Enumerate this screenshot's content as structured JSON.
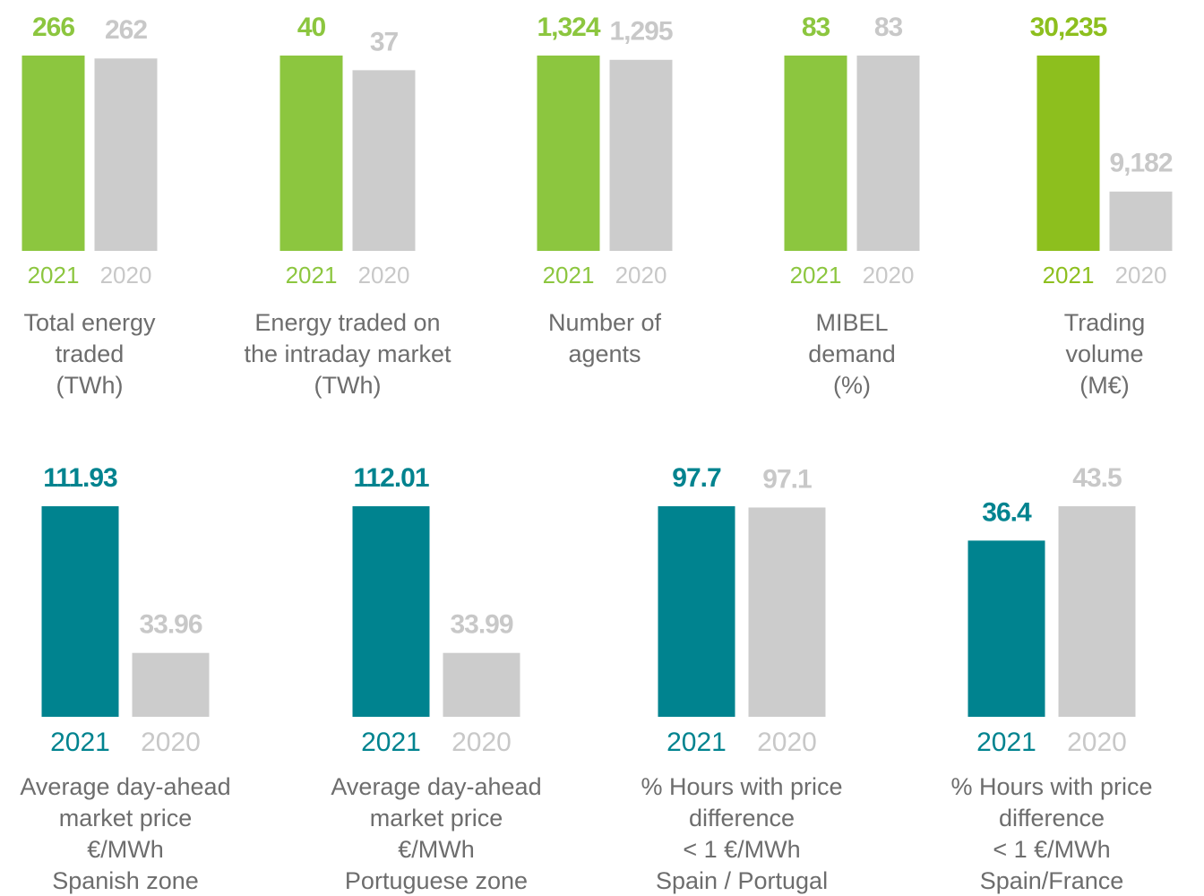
{
  "chart_data": [
    {
      "type": "bar",
      "categories": [
        "2021",
        "2020"
      ],
      "values": [
        266,
        262
      ],
      "colors": [
        "#8cc63f",
        "#cccccc"
      ],
      "label": [
        "Total energy",
        "traded",
        "(TWh)"
      ]
    },
    {
      "type": "bar",
      "categories": [
        "2021",
        "2020"
      ],
      "values": [
        40,
        37
      ],
      "colors": [
        "#8cc63f",
        "#cccccc"
      ],
      "label": [
        "Energy traded on",
        "the intraday market",
        "(TWh)"
      ]
    },
    {
      "type": "bar",
      "categories": [
        "2021",
        "2020"
      ],
      "values": [
        1324,
        1295
      ],
      "value_labels": [
        "1,324",
        "1,295"
      ],
      "colors": [
        "#8cc63f",
        "#cccccc"
      ],
      "label": [
        "Number of",
        "agents"
      ]
    },
    {
      "type": "bar",
      "categories": [
        "2021",
        "2020"
      ],
      "values": [
        83,
        83
      ],
      "colors": [
        "#8cc63f",
        "#cccccc"
      ],
      "label": [
        "MIBEL",
        "demand",
        "(%)"
      ]
    },
    {
      "type": "bar",
      "categories": [
        "2021",
        "2020"
      ],
      "values": [
        30235,
        9182
      ],
      "value_labels": [
        "30,235",
        "9,182"
      ],
      "colors": [
        "#8dbf1e",
        "#cccccc"
      ],
      "label": [
        "Trading",
        "volume",
        "(M€)"
      ]
    },
    {
      "type": "bar",
      "categories": [
        "2021",
        "2020"
      ],
      "values": [
        111.93,
        33.96
      ],
      "colors": [
        "#00838f",
        "#cccccc"
      ],
      "label": [
        "Average day-ahead",
        "market price",
        "€/MWh",
        "Spanish zone"
      ]
    },
    {
      "type": "bar",
      "categories": [
        "2021",
        "2020"
      ],
      "values": [
        112.01,
        33.99
      ],
      "colors": [
        "#00838f",
        "#cccccc"
      ],
      "label": [
        "Average day-ahead",
        "market price",
        "€/MWh",
        "Portuguese zone"
      ]
    },
    {
      "type": "bar",
      "categories": [
        "2021",
        "2020"
      ],
      "values": [
        97.7,
        97.1
      ],
      "colors": [
        "#00838f",
        "#cccccc"
      ],
      "label": [
        "% Hours with price",
        "difference",
        "< 1 €/MWh",
        "Spain / Portugal"
      ]
    },
    {
      "type": "bar",
      "categories": [
        "2021",
        "2020"
      ],
      "values": [
        36.4,
        43.5
      ],
      "colors": [
        "#00838f",
        "#cccccc"
      ],
      "label": [
        "% Hours with price",
        "difference",
        "< 1 €/MWh",
        "Spain/France"
      ]
    }
  ]
}
